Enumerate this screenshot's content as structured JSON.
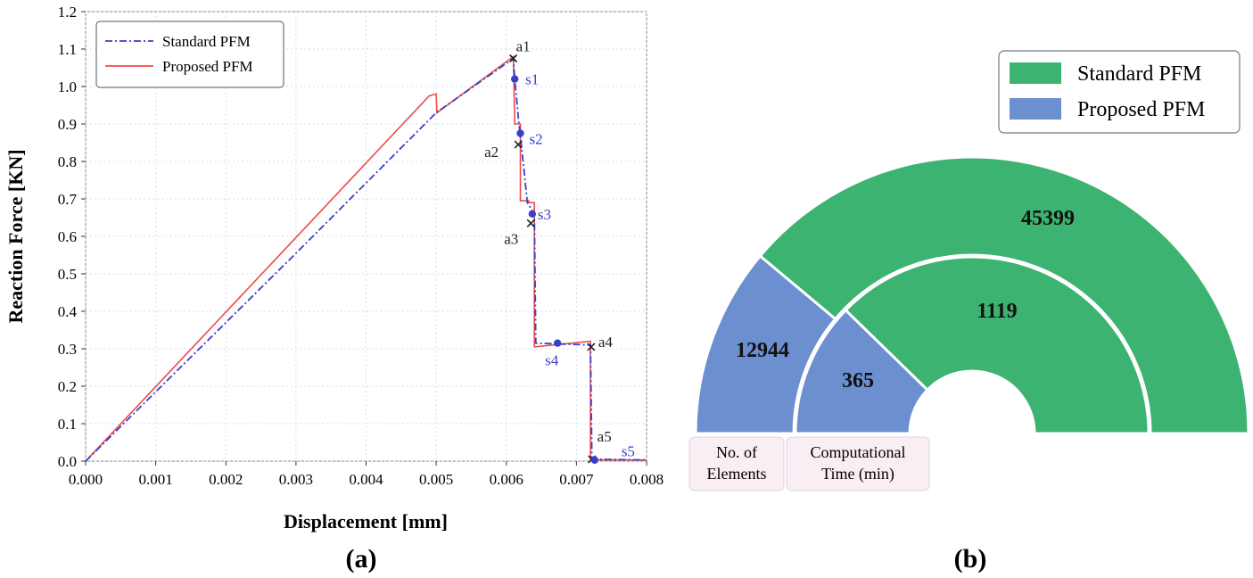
{
  "panels": {
    "a_label": "(a)",
    "b_label": "(b)"
  },
  "chart_data": [
    {
      "type": "line",
      "xlabel": "Displacement [mm]",
      "ylabel": "Reaction Force [KN]",
      "xlim": [
        0.0,
        0.008
      ],
      "ylim": [
        0.0,
        1.2
      ],
      "xticks": [
        "0.000",
        "0.001",
        "0.002",
        "0.003",
        "0.004",
        "0.005",
        "0.006",
        "0.007",
        "0.008"
      ],
      "yticks": [
        "0.0",
        "0.1",
        "0.2",
        "0.3",
        "0.4",
        "0.5",
        "0.6",
        "0.7",
        "0.8",
        "0.9",
        "1.0",
        "1.1",
        "1.2"
      ],
      "grid": true,
      "legend_position": "top-left",
      "series": [
        {
          "name": "Standard PFM",
          "color": "#3a3fc8",
          "style": "dash-dot",
          "x": [
            0.0,
            0.003,
            0.005,
            0.0061,
            0.00612,
            0.00618,
            0.0062,
            0.0063,
            0.0064,
            0.00642,
            0.0072,
            0.00722,
            0.0073,
            0.008
          ],
          "y": [
            0.0,
            0.555,
            0.93,
            1.075,
            1.02,
            0.9,
            0.87,
            0.69,
            0.66,
            0.315,
            0.31,
            0.01,
            0.005,
            0.003
          ]
        },
        {
          "name": "Proposed PFM",
          "color": "#ef4a4a",
          "style": "solid",
          "x": [
            0.0,
            0.0049,
            0.005,
            0.00501,
            0.0061,
            0.00612,
            0.0062,
            0.0062,
            0.00632,
            0.00632,
            0.0064,
            0.0064,
            0.0072,
            0.0072,
            0.0073,
            0.008
          ],
          "y": [
            0.0,
            0.975,
            0.98,
            0.93,
            1.08,
            0.9,
            0.9,
            0.695,
            0.695,
            0.69,
            0.69,
            0.305,
            0.32,
            0.005,
            0.003,
            0.003
          ]
        }
      ],
      "markers_a": [
        {
          "label": "a1",
          "x": 0.0061,
          "y": 1.075
        },
        {
          "label": "a2",
          "x": 0.00617,
          "y": 0.845
        },
        {
          "label": "a3",
          "x": 0.00635,
          "y": 0.635
        },
        {
          "label": "a4",
          "x": 0.00721,
          "y": 0.305
        },
        {
          "label": "a5",
          "x": 0.00722,
          "y": 0.005
        }
      ],
      "markers_s": [
        {
          "label": "s1",
          "x": 0.00612,
          "y": 1.02
        },
        {
          "label": "s2",
          "x": 0.0062,
          "y": 0.875
        },
        {
          "label": "s3",
          "x": 0.00637,
          "y": 0.66
        },
        {
          "label": "s4",
          "x": 0.00673,
          "y": 0.315
        },
        {
          "label": "s5",
          "x": 0.00726,
          "y": 0.003
        }
      ]
    },
    {
      "type": "pie",
      "layout": "nested semi-circle",
      "legend_position": "top-right",
      "series": [
        {
          "name": "Standard PFM",
          "color": "#3cb371"
        },
        {
          "name": "Proposed PFM",
          "color": "#6c8fd0"
        }
      ],
      "rings": [
        {
          "label": "No. of Elements",
          "values": [
            45399,
            12944
          ]
        },
        {
          "label": "Computational Time (min)",
          "values": [
            1119,
            365
          ]
        }
      ]
    }
  ]
}
